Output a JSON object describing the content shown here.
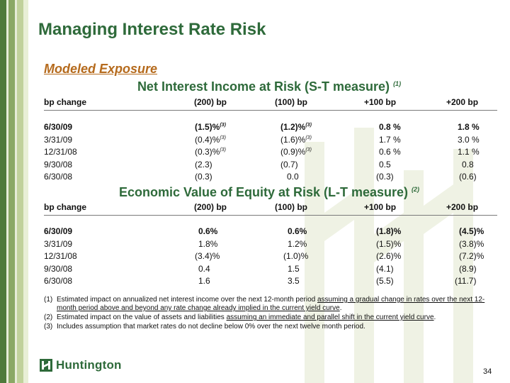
{
  "colors": {
    "brand_green": "#2e6a3a",
    "accent_orange": "#b56a1c"
  },
  "title": "Managing Interest Rate Risk",
  "subtitle": "Modeled Exposure",
  "nii": {
    "heading": "Net Interest Income at Risk (S-T measure)",
    "heading_note": "(1)",
    "columns": [
      "bp change",
      "(200) bp",
      "(100) bp",
      "+100 bp",
      "+200 bp"
    ],
    "rows": [
      {
        "date": "6/30/09",
        "v1": "(1.5)%",
        "n1": "(3)",
        "v2": "(1.2)%",
        "n2": "(3)",
        "v3": "0.8 %",
        "v4": "1.8 %"
      },
      {
        "date": "3/31/09",
        "v1": "(0.4)%",
        "n1": "(3)",
        "v2": "(1.6)%",
        "n2": "(3)",
        "v3": "1.7 %",
        "v4": "3.0 %"
      },
      {
        "date": "12/31/08",
        "v1": "(0.3)%",
        "n1": "(3)",
        "v2": "(0.9)%",
        "n2": "(3)",
        "v3": "0.6 %",
        "v4": "1.1 %"
      },
      {
        "date": "9/30/08",
        "v1": "(2.3)",
        "v2": "(0.7)",
        "v3": "0.5",
        "v4": "0.8"
      },
      {
        "date": "6/30/08",
        "v1": "(0.3)",
        "v2": "0.0",
        "v3": "(0.3)",
        "v4": "(0.6)"
      }
    ]
  },
  "eve": {
    "heading": "Economic Value of Equity at Risk (L-T measure)",
    "heading_note": "(2)",
    "columns": [
      "bp change",
      "(200) bp",
      "(100) bp",
      "+100 bp",
      "+200 bp"
    ],
    "rows": [
      {
        "date": "6/30/09",
        "v1": "0.6%",
        "v2": "0.6%",
        "v3": "(1.8)%",
        "v4": "(4.5)%"
      },
      {
        "date": "3/31/09",
        "v1": "1.8%",
        "v2": "1.2%",
        "v3": "(1.5)%",
        "v4": "(3.8)%"
      },
      {
        "date": "12/31/08",
        "v1": "(3.4)%",
        "v2": "(1.0)%",
        "v3": "(2.6)%",
        "v4": "(7.2)%"
      },
      {
        "date": "9/30/08",
        "v1": "0.4",
        "v2": "1.5",
        "v3": "(4.1)",
        "v4": "(8.9)"
      },
      {
        "date": "6/30/08",
        "v1": "1.6",
        "v2": "3.5",
        "v3": "(5.5)",
        "v4": "(11.7)"
      }
    ]
  },
  "footnotes": {
    "f1": {
      "num": "(1)",
      "pre": "Estimated impact on annualized net interest income over the next 12-month period ",
      "underlined": "assuming a gradual change in rates over the next 12-month period above and beyond any rate change already implied in the current yield curve",
      "post": "."
    },
    "f2": {
      "num": "(2)",
      "pre": "Estimated impact on the value of assets and liabilities ",
      "underlined": "assuming an immediate and parallel shift in the current yield curve",
      "post": "."
    },
    "f3": {
      "num": "(3)",
      "text": "Includes assumption that market rates do not decline below 0% over the next twelve month period."
    }
  },
  "logo": {
    "text": "Huntington",
    "icon": "huntington-h-icon"
  },
  "page_number": "34"
}
